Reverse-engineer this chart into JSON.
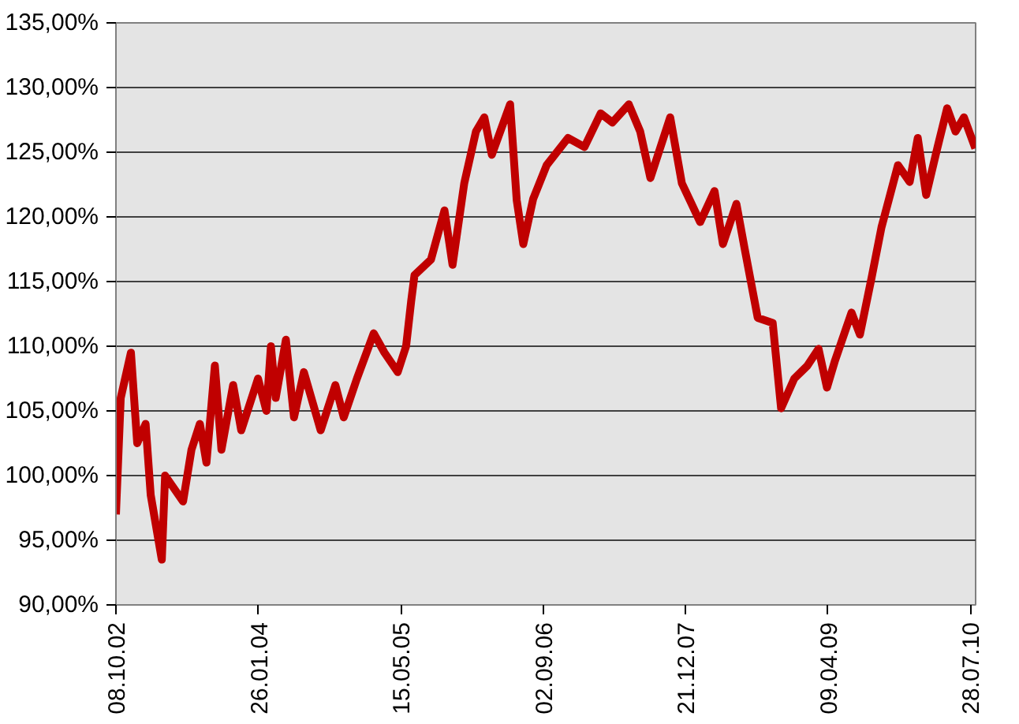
{
  "chart_data": {
    "type": "line",
    "x": [
      "2002-10-08",
      "2002-10-24",
      "2002-11-27",
      "2002-12-18",
      "2003-01-15",
      "2003-02-01",
      "2003-03-10",
      "2003-03-21",
      "2003-05-20",
      "2003-06-17",
      "2003-07-15",
      "2003-08-06",
      "2003-09-03",
      "2003-09-25",
      "2003-11-03",
      "2003-11-30",
      "2004-01-25",
      "2004-02-22",
      "2004-03-08",
      "2004-03-24",
      "2004-04-27",
      "2004-05-24",
      "2004-06-26",
      "2004-08-21",
      "2004-10-09",
      "2004-11-06",
      "2004-12-20",
      "2005-02-14",
      "2005-03-22",
      "2005-05-05",
      "2005-06-02",
      "2005-06-19",
      "2005-06-30",
      "2005-08-24",
      "2005-10-08",
      "2005-11-04",
      "2005-12-13",
      "2006-01-21",
      "2006-02-18",
      "2006-03-15",
      "2006-05-15",
      "2006-06-06",
      "2006-06-28",
      "2006-07-31",
      "2006-09-14",
      "2006-11-24",
      "2007-01-18",
      "2007-03-13",
      "2007-04-21",
      "2007-06-15",
      "2007-07-23",
      "2007-08-26",
      "2007-10-31",
      "2007-12-09",
      "2008-02-08",
      "2008-03-27",
      "2008-04-24",
      "2008-06-08",
      "2008-07-05",
      "2008-08-18",
      "2008-10-07",
      "2008-11-04",
      "2008-12-18",
      "2009-01-31",
      "2009-03-09",
      "2009-04-06",
      "2009-05-03",
      "2009-06-27",
      "2009-07-25",
      "2009-09-02",
      "2009-10-05",
      "2009-11-29",
      "2010-01-07",
      "2010-02-03",
      "2010-03-03",
      "2010-04-09",
      "2010-05-12",
      "2010-06-09",
      "2010-07-07",
      "2010-08-14"
    ],
    "series": [
      {
        "color": "#c00000",
        "values": [
          97,
          106,
          109.5,
          102.5,
          104,
          98.5,
          93.5,
          100,
          98,
          102,
          104,
          101,
          108.5,
          102,
          107,
          103.5,
          107.5,
          105,
          110,
          106,
          110.5,
          104.5,
          108,
          103.5,
          107,
          104.5,
          107.5,
          111,
          109.5,
          108,
          110,
          113.5,
          115.5,
          116.7,
          120.5,
          116.3,
          122.6,
          126.6,
          127.7,
          124.8,
          128.7,
          121.3,
          117.9,
          121.4,
          124,
          126.1,
          125.4,
          128,
          127.3,
          128.7,
          126.6,
          123,
          127.7,
          122.6,
          119.6,
          122,
          117.9,
          121,
          117.6,
          112.2,
          111.8,
          105.2,
          107.5,
          108.5,
          109.8,
          106.8,
          108.9,
          112.6,
          110.9,
          115.3,
          119.2,
          124,
          122.7,
          126.1,
          121.7,
          125.3,
          128.4,
          126.6,
          127.7,
          125.3
        ]
      }
    ],
    "xlim": [
      "2002-10-08",
      "2010-08-15"
    ],
    "xticks": [
      {
        "value": "2002-10-08",
        "label": "08.10.02"
      },
      {
        "value": "2004-01-26",
        "label": "26.01.04"
      },
      {
        "value": "2005-05-15",
        "label": "15.05.05"
      },
      {
        "value": "2006-09-02",
        "label": "02.09.06"
      },
      {
        "value": "2007-12-21",
        "label": "21.12.07"
      },
      {
        "value": "2009-04-09",
        "label": "09.04.09"
      },
      {
        "value": "2010-07-28",
        "label": "28.07.10"
      }
    ],
    "ylim": [
      90,
      135
    ],
    "yticks": [
      {
        "value": 90,
        "label": "90,00%"
      },
      {
        "value": 95,
        "label": "95,00%"
      },
      {
        "value": 100,
        "label": "100,00%"
      },
      {
        "value": 105,
        "label": "105,00%"
      },
      {
        "value": 110,
        "label": "110,00%"
      },
      {
        "value": 115,
        "label": "115,00%"
      },
      {
        "value": 120,
        "label": "120,00%"
      },
      {
        "value": 125,
        "label": "125,00%"
      },
      {
        "value": 130,
        "label": "130,00%"
      },
      {
        "value": 135,
        "label": "135,00%"
      }
    ],
    "grid": "y",
    "marker": "none",
    "line_style": "solid"
  }
}
